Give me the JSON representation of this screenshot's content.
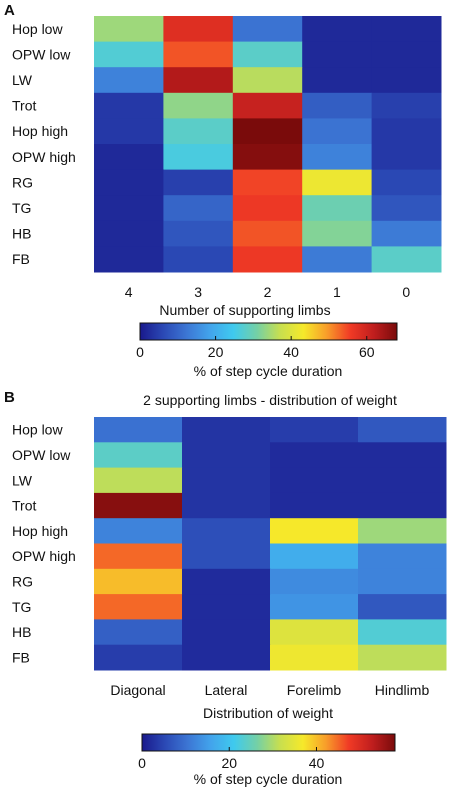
{
  "colormap": [
    "#19198c",
    "#2b49b5",
    "#3c76d4",
    "#42a4ec",
    "#3fcaee",
    "#74d0a6",
    "#c8df4f",
    "#f6e92a",
    "#f89d2a",
    "#f03a25",
    "#c01e1e",
    "#7a0b0b"
  ],
  "chart_data": [
    {
      "type": "heatmap",
      "panel_label": "A",
      "title": "",
      "rows": [
        "Hop low",
        "OPW low",
        "LW",
        "Trot",
        "Hop high",
        "OPW high",
        "RG",
        "TG",
        "HB",
        "FB"
      ],
      "columns": [
        "4",
        "3",
        "2",
        "1",
        "0"
      ],
      "values": [
        [
          34,
          58,
          12,
          2,
          2
        ],
        [
          27,
          54,
          28,
          2,
          2
        ],
        [
          14,
          63,
          36,
          2,
          2
        ],
        [
          4,
          33,
          61,
          9,
          5
        ],
        [
          4,
          28,
          69,
          12,
          4
        ],
        [
          2,
          26,
          67,
          14,
          4
        ],
        [
          2,
          5,
          55,
          42,
          6
        ],
        [
          2,
          10,
          56,
          30,
          8
        ],
        [
          2,
          8,
          54,
          32,
          13
        ],
        [
          2,
          6,
          56,
          13,
          28
        ]
      ],
      "xlabel": "Number of supporting limbs",
      "colorbar": {
        "min": 0,
        "max": 68,
        "ticks": [
          "0",
          "20",
          "40",
          "60"
        ],
        "tick_values": [
          0,
          20,
          40,
          60
        ],
        "label": "% of step cycle duration"
      }
    },
    {
      "type": "heatmap",
      "panel_label": "B",
      "title": "2 supporting limbs - distribution of weight",
      "rows": [
        "Hop low",
        "OPW low",
        "LW",
        "Trot",
        "Hop high",
        "OPW high",
        "RG",
        "TG",
        "HB",
        "FB"
      ],
      "columns": [
        "Diagonal",
        "Lateral",
        "Forelimb",
        "Hindlimb"
      ],
      "values": [
        [
          10,
          3,
          4,
          7
        ],
        [
          24,
          3,
          2,
          2
        ],
        [
          31,
          3,
          2,
          2
        ],
        [
          57,
          3,
          2,
          2
        ],
        [
          12,
          6,
          37,
          29
        ],
        [
          45,
          6,
          17,
          12
        ],
        [
          40,
          2,
          13,
          12
        ],
        [
          45,
          2,
          14,
          7
        ],
        [
          8,
          2,
          34,
          23
        ],
        [
          4,
          2,
          36,
          31
        ]
      ],
      "xlabel": "Distribution of weight",
      "colorbar": {
        "min": 0,
        "max": 58,
        "ticks": [
          "0",
          "20",
          "40"
        ],
        "tick_values": [
          0,
          20,
          40
        ],
        "label": "% of step cycle duration"
      }
    }
  ]
}
